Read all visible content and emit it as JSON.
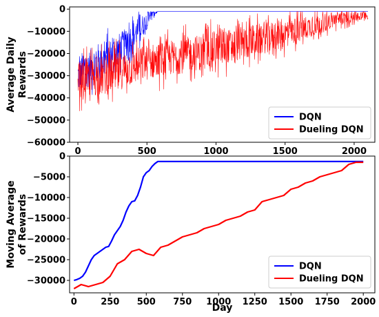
{
  "chart_data": [
    {
      "type": "line",
      "ylabel": "Average Daily Rewards",
      "ylabel_lines": [
        "Average Daily",
        "Rewards"
      ],
      "xlabel": "",
      "xlim": [
        -60,
        2150
      ],
      "ylim": [
        -60000,
        1000
      ],
      "xticks": [
        0,
        500,
        1000,
        1500,
        2000
      ],
      "yticks": [
        0,
        -10000,
        -20000,
        -30000,
        -40000,
        -50000,
        -60000
      ],
      "legend": "bottom-right",
      "series": [
        {
          "name": "DQN",
          "color": "#0000ff",
          "trend_x": [
            0,
            50,
            100,
            150,
            200,
            250,
            300,
            350,
            400,
            450,
            500,
            550,
            580,
            2100
          ],
          "trend_y": [
            -30000,
            -28000,
            -26000,
            -24000,
            -22000,
            -20500,
            -18000,
            -15000,
            -12000,
            -9000,
            -5000,
            -2000,
            -1000,
            -1000
          ],
          "noise_amplitude": [
            10000,
            10000,
            11000,
            11000,
            10000,
            9000,
            9000,
            8000,
            8000,
            7000,
            5000,
            2000,
            0,
            0
          ]
        },
        {
          "name": "Dueling DQN",
          "color": "#ff0000",
          "trend_x": [
            0,
            200,
            500,
            1000,
            1500,
            1900,
            2100
          ],
          "trend_y": [
            -32000,
            -30000,
            -24000,
            -18000,
            -11000,
            -4000,
            -3000
          ],
          "noise_amplitude": [
            10000,
            11000,
            10000,
            10000,
            8000,
            4000,
            2000
          ]
        }
      ]
    },
    {
      "type": "line",
      "ylabel": "Moving Average of Rewards",
      "ylabel_lines": [
        "Moving Average",
        "of Rewards"
      ],
      "xlabel": "Day",
      "xlim": [
        -30,
        2080
      ],
      "ylim": [
        -33000,
        0
      ],
      "xticks": [
        0,
        250,
        500,
        750,
        1000,
        1250,
        1500,
        1750,
        2000
      ],
      "yticks": [
        0,
        -5000,
        -10000,
        -15000,
        -20000,
        -25000,
        -30000
      ],
      "legend": "bottom-right",
      "series": [
        {
          "name": "DQN",
          "color": "#0000ff",
          "x": [
            0,
            20,
            40,
            60,
            80,
            100,
            120,
            140,
            160,
            180,
            200,
            220,
            240,
            260,
            280,
            300,
            320,
            340,
            360,
            380,
            400,
            420,
            440,
            460,
            480,
            500,
            520,
            540,
            560,
            580,
            600,
            800,
            1000,
            1200,
            1500,
            1800,
            2000
          ],
          "y": [
            -30000,
            -29800,
            -29500,
            -29000,
            -28000,
            -26500,
            -25000,
            -24000,
            -23500,
            -23000,
            -22500,
            -22000,
            -21800,
            -20500,
            -19000,
            -18000,
            -17000,
            -15500,
            -13500,
            -12000,
            -11000,
            -10800,
            -9500,
            -7500,
            -5000,
            -4000,
            -3500,
            -2500,
            -1800,
            -1300,
            -1300,
            -1300,
            -1300,
            -1300,
            -1300,
            -1300,
            -1300
          ]
        },
        {
          "name": "Dueling DQN",
          "color": "#ff0000",
          "x": [
            0,
            50,
            100,
            150,
            200,
            250,
            300,
            350,
            400,
            450,
            500,
            550,
            600,
            650,
            700,
            750,
            800,
            850,
            900,
            950,
            1000,
            1050,
            1100,
            1150,
            1200,
            1250,
            1300,
            1350,
            1400,
            1450,
            1500,
            1550,
            1600,
            1650,
            1700,
            1750,
            1800,
            1850,
            1900,
            1950,
            2000
          ],
          "y": [
            -32000,
            -31000,
            -31500,
            -31000,
            -30500,
            -29000,
            -26000,
            -25000,
            -23000,
            -22500,
            -23500,
            -24000,
            -22000,
            -21500,
            -20500,
            -19500,
            -19000,
            -18500,
            -17500,
            -17000,
            -16500,
            -15500,
            -15000,
            -14500,
            -13500,
            -13000,
            -11000,
            -10500,
            -10000,
            -9500,
            -8000,
            -7500,
            -6500,
            -6000,
            -5000,
            -4500,
            -4000,
            -3500,
            -2000,
            -1500,
            -1500
          ]
        }
      ]
    }
  ]
}
